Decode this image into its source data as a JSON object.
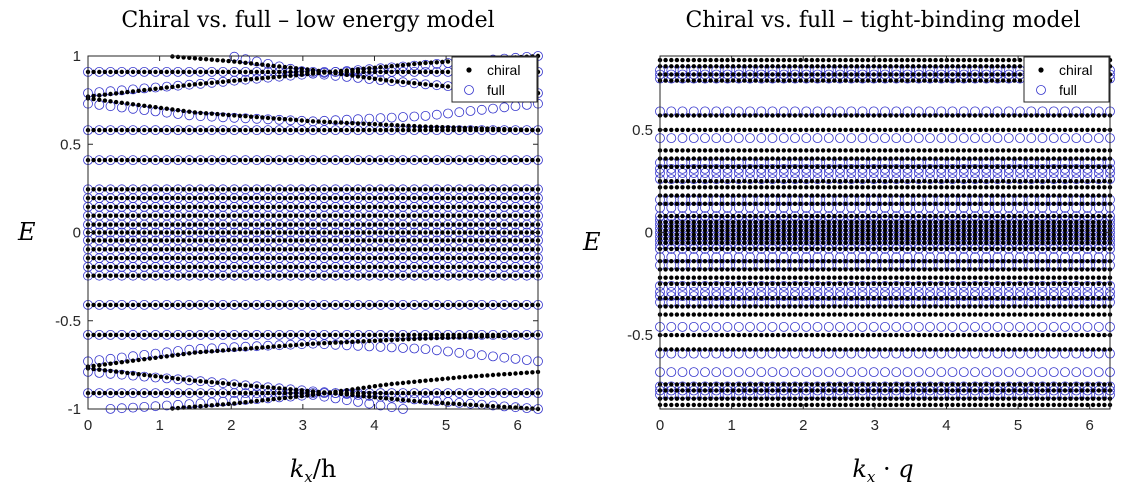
{
  "colors": {
    "chiral": "#000000",
    "full": "#3333cc",
    "axis": "#262626"
  },
  "chart_data": [
    {
      "type": "scatter",
      "title": "Chiral vs. full – low energy model",
      "xlabel": "k_x/h",
      "ylabel": "E",
      "xlim": [
        0,
        6.2832
      ],
      "ylim": [
        -1,
        1
      ],
      "x_ticks": [
        0,
        1,
        2,
        3,
        4,
        5,
        6
      ],
      "y_ticks": [
        -1,
        -0.5,
        0,
        0.5,
        1
      ],
      "y_tick_labels": [
        "-1",
        "-0.5",
        "0",
        "0.5",
        "1"
      ],
      "legend": {
        "position": "top-right",
        "entries": [
          "chiral",
          "full"
        ]
      },
      "flat_bands": {
        "chiral": [
          0.91,
          0.58,
          0.41,
          0.245,
          0.195,
          0.145,
          0.095,
          0.045,
          0,
          -0.045,
          -0.095,
          -0.145,
          -0.195,
          -0.245,
          -0.41,
          -0.58,
          -0.91
        ],
        "full": [
          0.91,
          0.58,
          0.41,
          0.245,
          0.195,
          0.145,
          0.095,
          0.045,
          0,
          -0.045,
          -0.095,
          -0.145,
          -0.195,
          -0.245,
          -0.41,
          -0.58,
          -0.91
        ]
      },
      "dispersive_bands": {
        "chiral": [
          {
            "x": [
              1.1,
              2.0,
              3.14,
              4.2,
              5.2,
              6.2832
            ],
            "y": [
              1.0,
              0.97,
              0.92,
              0.86,
              0.82,
              0.79
            ]
          },
          {
            "x": [
              0,
              1.5,
              3.14,
              4.7,
              6.2832
            ],
            "y": [
              0.77,
              0.84,
              0.9,
              0.96,
              1.0
            ]
          },
          {
            "x": [
              0,
              1.5,
              3.14,
              4.7,
              6.2832
            ],
            "y": [
              0.76,
              0.68,
              0.63,
              0.6,
              0.58
            ]
          },
          {
            "x": [
              0,
              1.5,
              3.14,
              4.7,
              6.2832
            ],
            "y": [
              -0.76,
              -0.68,
              -0.63,
              -0.6,
              -0.58
            ]
          },
          {
            "x": [
              0,
              1.5,
              3.14,
              4.7,
              6.2832
            ],
            "y": [
              -0.77,
              -0.84,
              -0.9,
              -0.96,
              -1.0
            ]
          },
          {
            "x": [
              1.1,
              2.0,
              3.14,
              4.2,
              5.2,
              6.2832
            ],
            "y": [
              -1.0,
              -0.97,
              -0.92,
              -0.86,
              -0.82,
              -0.79
            ]
          }
        ],
        "full": [
          {
            "x": [
              2.0,
              3.14,
              4.7,
              6.2832
            ],
            "y": [
              1.0,
              0.9,
              0.84,
              0.79
            ]
          },
          {
            "x": [
              0,
              1.5,
              3.14,
              4.7,
              6.2832
            ],
            "y": [
              0.79,
              0.84,
              0.9,
              0.95,
              1.0
            ]
          },
          {
            "x": [
              0,
              1.5,
              3.14,
              4.7,
              6.2832
            ],
            "y": [
              0.73,
              0.66,
              0.63,
              0.66,
              0.73
            ]
          },
          {
            "x": [
              0,
              1.5,
              3.14,
              4.7,
              6.2832
            ],
            "y": [
              -0.73,
              -0.66,
              -0.63,
              -0.66,
              -0.73
            ]
          },
          {
            "x": [
              0,
              1.5,
              3.14,
              4.7,
              6.2832
            ],
            "y": [
              -0.79,
              -0.84,
              -0.9,
              -0.95,
              -1.0
            ]
          },
          {
            "x": [
              0.3,
              1.5,
              3.14,
              4.4
            ],
            "y": [
              -1.0,
              -0.97,
              -0.92,
              -1.0
            ]
          }
        ]
      }
    },
    {
      "type": "scatter",
      "title": "Chiral vs. full – tight-binding model",
      "xlabel": "k_x · q",
      "ylabel": "E",
      "xlim": [
        0,
        6.2832
      ],
      "ylim": [
        -0.86,
        0.86
      ],
      "x_ticks": [
        0,
        1,
        2,
        3,
        4,
        5,
        6
      ],
      "y_ticks": [
        -0.5,
        0,
        0.5
      ],
      "y_tick_labels": [
        "-0.5",
        "0",
        "0.5"
      ],
      "legend": {
        "position": "top-right",
        "entries": [
          "chiral",
          "full"
        ]
      },
      "flat_bands": {
        "chiral": [
          0.84,
          0.81,
          0.77,
          0.74,
          0.57,
          0.5,
          0.4,
          0.36,
          0.32,
          0.25,
          0.22,
          0.18,
          0.14,
          0.08,
          0.05,
          0.03,
          0.01,
          -0.01,
          -0.03,
          -0.05,
          -0.08,
          -0.14,
          -0.18,
          -0.22,
          -0.25,
          -0.32,
          -0.36,
          -0.4,
          -0.5,
          -0.57,
          -0.74,
          -0.77,
          -0.81,
          -0.84
        ],
        "full": [
          0.79,
          0.77,
          0.75,
          0.59,
          0.46,
          0.34,
          0.31,
          0.29,
          0.26,
          0.16,
          0.12,
          0.08,
          0.06,
          0.04,
          0.02,
          0,
          -0.02,
          -0.04,
          -0.06,
          -0.08,
          -0.12,
          -0.16,
          -0.26,
          -0.29,
          -0.31,
          -0.34,
          -0.46,
          -0.59,
          -0.68,
          -0.75,
          -0.77,
          -0.79
        ]
      }
    }
  ]
}
